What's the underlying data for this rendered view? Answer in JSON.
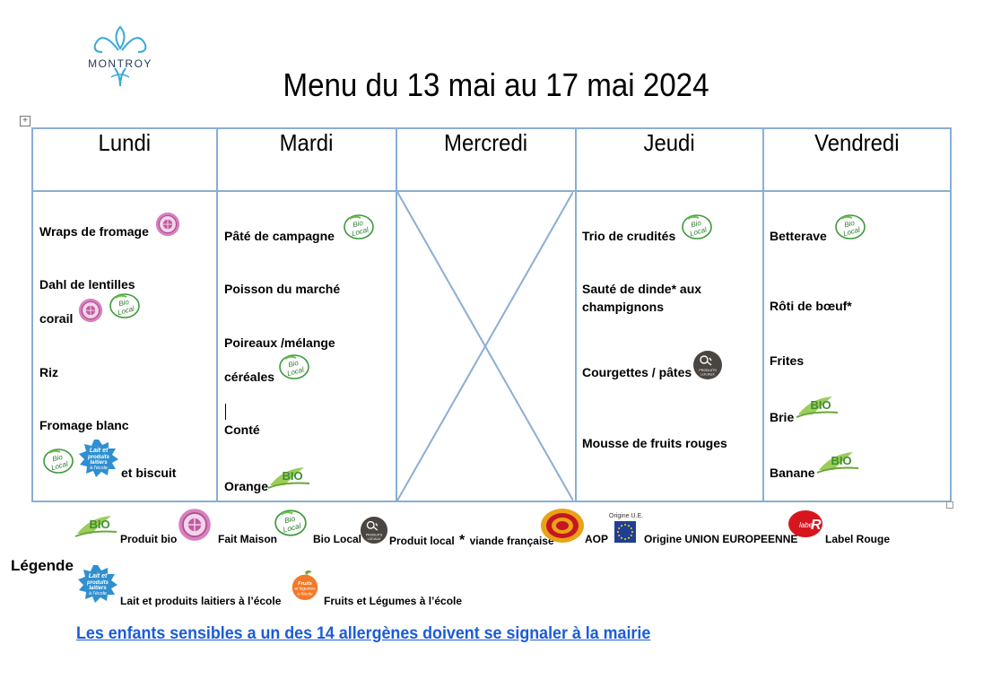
{
  "header": {
    "logo_text": "MONTROY",
    "title": "Menu du 13 mai au 17 mai 2024"
  },
  "days": [
    "Lundi",
    "Mardi",
    "Mercredi",
    "Jeudi",
    "Vendredi"
  ],
  "menu": {
    "lundi": {
      "item1": "Wraps de fromage",
      "item2_line1": "Dahl de lentilles",
      "item2_line2": "corail",
      "item3": "Riz",
      "item4": "Fromage blanc",
      "item5": "et biscuit"
    },
    "mardi": {
      "item1": "Pâté de campagne",
      "item2": "Poisson du marché",
      "item3_line1": "Poireaux /mélange",
      "item3_line2": "céréales",
      "item4": "Conté",
      "item5": "Orange"
    },
    "mercredi": {},
    "jeudi": {
      "item1": "Trio de crudités",
      "item2_line1": "Sauté de dinde* aux",
      "item2_line2": "champignons",
      "item3": "Courgettes / pâtes",
      "item4": "Mousse de fruits rouges"
    },
    "vendredi": {
      "item1": "Betterave",
      "item2": "Rôti de bœuf*",
      "item3": "Frites",
      "item4": "Brie",
      "item5": "Banane"
    }
  },
  "badges": {
    "bio": "BIO",
    "bio_local_line1": "Bio",
    "bio_local_line2": "Local",
    "produits_locaux": "PRODUITS LOCAUX",
    "lait_line1": "Lait et",
    "lait_line2": "produits",
    "lait_line3": "laitiers",
    "lait_line4": "à l'école",
    "origine_ue": "Origine U.E.",
    "fruits_line1": "Fruits",
    "fruits_line2": "et légumes",
    "fruits_line3": "à l'école"
  },
  "legend": {
    "title": "Légende",
    "produit_bio": "Produit bio",
    "fait_maison": "Fait Maison",
    "bio_local": "Bio Local",
    "produit_local": "Produit local",
    "asterisk": "*",
    "viande": "viande française",
    "aop": "AOP",
    "origine_ue": "Origine UNION EUROPEENNE",
    "label_rouge": "Label Rouge",
    "lait": "Lait et produits laitiers à l’école",
    "fruits": "Fruits et Légumes à l’école"
  },
  "notice": "Les enfants sensibles a un des 14 allergènes doivent se signaler à la mairie"
}
